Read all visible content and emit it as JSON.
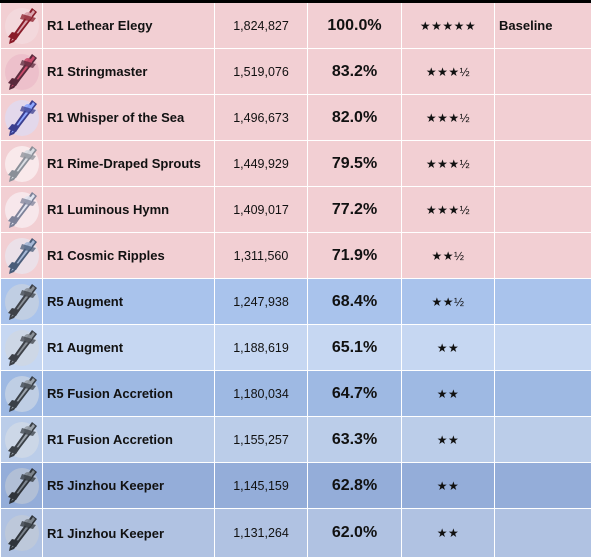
{
  "colors": {
    "pink": "#f2cfd3",
    "blue_a": "#a9c3ec",
    "blue_b": "#c6d7f2",
    "blue_c": "#9eb9e3",
    "blue_d": "#bbcde9",
    "blue_e": "#94add9",
    "blue_f": "#b0c2e2"
  },
  "rows": [
    {
      "icon": "lethear-elegy-sword-icon",
      "name": "R1 Lethear Elegy",
      "damage": "1,824,827",
      "percent": "100.0%",
      "rating": "★★★★★",
      "note": "Baseline",
      "bg": "#f2cfd3"
    },
    {
      "icon": "stringmaster-rectifier-icon",
      "name": "R1 Stringmaster",
      "damage": "1,519,076",
      "percent": "83.2%",
      "rating": "★★★½",
      "note": "",
      "bg": "#f2cfd3"
    },
    {
      "icon": "whisper-of-the-sea-icon",
      "name": "R1 Whisper of the Sea",
      "damage": "1,496,673",
      "percent": "82.0%",
      "rating": "★★★½",
      "note": "",
      "bg": "#f2cfd3"
    },
    {
      "icon": "rime-draped-sprouts-icon",
      "name": "R1 Rime-Draped Sprouts",
      "damage": "1,449,929",
      "percent": "79.5%",
      "rating": "★★★½",
      "note": "",
      "bg": "#f2cfd3"
    },
    {
      "icon": "luminous-hymn-icon",
      "name": "R1 Luminous Hymn",
      "damage": "1,409,017",
      "percent": "77.2%",
      "rating": "★★★½",
      "note": "",
      "bg": "#f2cfd3"
    },
    {
      "icon": "cosmic-ripples-icon",
      "name": "R1 Cosmic Ripples",
      "damage": "1,311,560",
      "percent": "71.9%",
      "rating": "★★½",
      "note": "",
      "bg": "#f2cfd3"
    },
    {
      "icon": "augment-icon",
      "name": "R5 Augment",
      "damage": "1,247,938",
      "percent": "68.4%",
      "rating": "★★½",
      "note": "",
      "bg": "#a9c3ec"
    },
    {
      "icon": "augment-icon",
      "name": "R1 Augment",
      "damage": "1,188,619",
      "percent": "65.1%",
      "rating": "★★",
      "note": "",
      "bg": "#c6d7f2"
    },
    {
      "icon": "fusion-accretion-icon",
      "name": "R5 Fusion Accretion",
      "damage": "1,180,034",
      "percent": "64.7%",
      "rating": "★★",
      "note": "",
      "bg": "#9eb9e3"
    },
    {
      "icon": "fusion-accretion-icon",
      "name": "R1 Fusion Accretion",
      "damage": "1,155,257",
      "percent": "63.3%",
      "rating": "★★",
      "note": "",
      "bg": "#bbcde9"
    },
    {
      "icon": "jinzhou-keeper-icon",
      "name": "R5 Jinzhou Keeper",
      "damage": "1,145,159",
      "percent": "62.8%",
      "rating": "★★",
      "note": "",
      "bg": "#94add9"
    },
    {
      "icon": "jinzhou-keeper-icon",
      "name": "R1 Jinzhou Keeper",
      "damage": "1,131,264",
      "percent": "62.0%",
      "rating": "★★",
      "note": "",
      "bg": "#b0c2e2"
    }
  ]
}
